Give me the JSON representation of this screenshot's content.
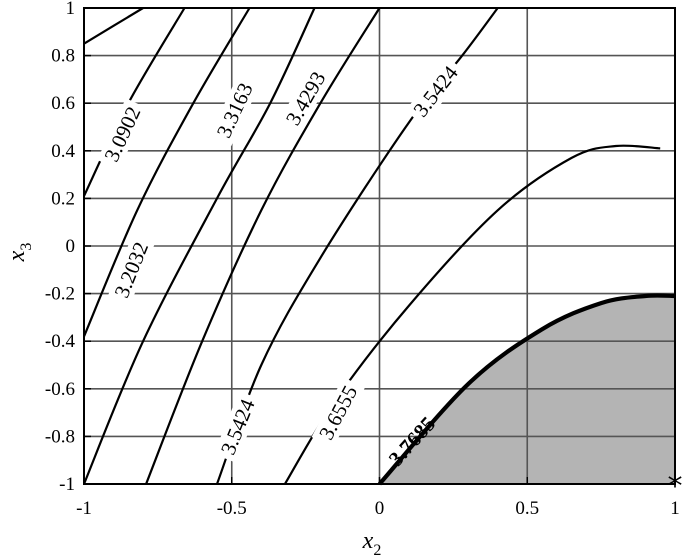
{
  "chart_data": {
    "type": "contour",
    "title": "",
    "xlabel": "x",
    "xlabel_sub": "2",
    "ylabel": "x",
    "ylabel_sub": "3",
    "xlim": [
      -1,
      1
    ],
    "ylim": [
      -1,
      1
    ],
    "grid": true,
    "x_ticks": [
      -1,
      -0.5,
      0,
      0.5,
      1
    ],
    "x_tick_labels": [
      "-1",
      "-0.5",
      "0",
      "0.5",
      "1"
    ],
    "y_ticks": [
      -1,
      -0.8,
      -0.6,
      -0.4,
      -0.2,
      0,
      0.2,
      0.4,
      0.6,
      0.8,
      1
    ],
    "y_tick_labels": [
      "-1",
      "-0.8",
      "-0.6",
      "-0.4",
      "-0.2",
      "0",
      "0.2",
      "0.4",
      "0.6",
      "0.8",
      "1"
    ],
    "colors": {
      "infeasible_fill": "#b4b4b4",
      "lines": "#000000",
      "grid": "#555555"
    },
    "contours": [
      {
        "level": "3.0902",
        "points": [
          [
            -1.0,
            0.85
          ],
          [
            -0.8,
            1.0
          ]
        ]
      },
      {
        "level": "3.0902",
        "points": [
          [
            -1.0,
            0.21
          ],
          [
            -0.85,
            0.6
          ],
          [
            -0.66,
            1.0
          ]
        ]
      },
      {
        "level": "3.2032",
        "points": [
          [
            -1.0,
            -0.38
          ],
          [
            -0.82,
            0.15
          ],
          [
            -0.63,
            0.6
          ],
          [
            -0.44,
            1.0
          ]
        ]
      },
      {
        "level": "3.3163",
        "points": [
          [
            -1.0,
            -1.0
          ],
          [
            -0.8,
            -0.4
          ],
          [
            -0.55,
            0.2
          ],
          [
            -0.37,
            0.6
          ],
          [
            -0.22,
            1.0
          ]
        ]
      },
      {
        "level": "3.4293",
        "points": [
          [
            -0.79,
            -1.0
          ],
          [
            -0.6,
            -0.4
          ],
          [
            -0.4,
            0.15
          ],
          [
            -0.2,
            0.6
          ],
          [
            0.0,
            1.0
          ]
        ]
      },
      {
        "level": "3.5424",
        "points": [
          [
            -0.55,
            -1.0
          ],
          [
            -0.4,
            -0.5
          ],
          [
            -0.2,
            -0.05
          ],
          [
            0.1,
            0.52
          ],
          [
            0.28,
            0.8
          ],
          [
            0.4,
            1.0
          ]
        ]
      },
      {
        "level": "3.6555",
        "points": [
          [
            -0.32,
            -1.0
          ],
          [
            -0.15,
            -0.65
          ],
          [
            0.1,
            -0.25
          ],
          [
            0.4,
            0.15
          ],
          [
            0.65,
            0.37
          ],
          [
            0.8,
            0.42
          ],
          [
            0.95,
            0.41
          ]
        ]
      },
      {
        "level": "3.7685",
        "bold": true,
        "points": [
          [
            0.0,
            -1.0
          ],
          [
            0.3,
            -0.58
          ],
          [
            0.55,
            -0.35
          ],
          [
            0.75,
            -0.24
          ],
          [
            0.9,
            -0.21
          ],
          [
            1.0,
            -0.21
          ]
        ]
      }
    ],
    "contour_labels": [
      {
        "text": "3.0902",
        "x": -0.87,
        "y": 0.47,
        "angle": 65
      },
      {
        "text": "3.2032",
        "x": -0.84,
        "y": -0.1,
        "angle": 68
      },
      {
        "text": "3.3163",
        "x": -0.49,
        "y": 0.57,
        "angle": 65
      },
      {
        "text": "3.4293",
        "x": -0.25,
        "y": 0.62,
        "angle": 60
      },
      {
        "text": "3.5424",
        "x": 0.19,
        "y": 0.65,
        "angle": 52
      },
      {
        "text": "3.5424",
        "x": -0.48,
        "y": -0.76,
        "angle": 68
      },
      {
        "text": "3.6555",
        "x": -0.14,
        "y": -0.7,
        "angle": 62
      },
      {
        "text": "3.7685",
        "x": 0.11,
        "y": -0.82,
        "angle": 48,
        "bold": true
      }
    ],
    "shaded_region": {
      "description": "infeasible region below bold contour",
      "boundary_level": "3.7685"
    },
    "markers": [
      {
        "symbol": "*",
        "x": 1.0,
        "y": -1.0
      }
    ]
  }
}
